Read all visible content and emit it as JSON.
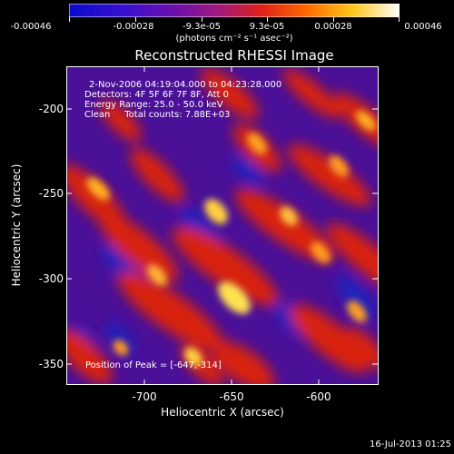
{
  "colorbar": {
    "tick_labels": [
      "-0.00046",
      "-0.00028",
      "-9.3e-05",
      "9.3e-05",
      "0.00028",
      "0.00046"
    ],
    "units": "(photons cm⁻² s⁻¹ asec⁻²)",
    "colors": [
      "#0a0acc",
      "#4a10c8",
      "#7a1aa0",
      "#b31e78",
      "#e8241a",
      "#ff7a00",
      "#ffd21a",
      "#ffffff"
    ]
  },
  "image": {
    "title": "Reconstructed RHESSI Image",
    "info_lines": [
      "2-Nov-2006 04:19:04.000 to 04:23:28.000",
      "Detectors: 4F 5F 6F 7F 8F, Att 0",
      "Energy Range: 25.0 - 50.0 keV",
      "Clean     Total counts: 7.88E+03"
    ],
    "peak_label": "Position of Peak = [-647,-314]"
  },
  "axes": {
    "xlabel": "Heliocentric X (arcsec)",
    "ylabel": "Heliocentric Y (arcsec)",
    "xticks": [
      "-700",
      "-650",
      "-600"
    ],
    "yticks": [
      "-200",
      "-250",
      "-300",
      "-350"
    ],
    "xlim": [
      -745,
      -632
    ],
    "ylim": [
      -368,
      -174
    ]
  },
  "footer": {
    "timestamp": "16-Jul-2013 01:25"
  }
}
